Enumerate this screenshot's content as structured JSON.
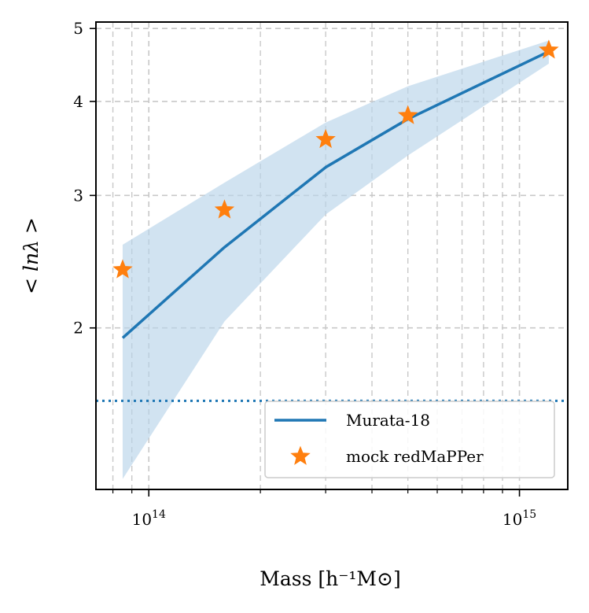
{
  "chart_data": {
    "type": "line",
    "x_scale": "log",
    "y_scale": "log",
    "xlabel": "Mass [h⁻¹M⊙]",
    "ylabel": "< lnλ >",
    "xlim": [
      72000000000000,
      1350000000000000
    ],
    "ylim": [
      1.22,
      5.1
    ],
    "grid": true,
    "x_ticks": [
      {
        "value": 100000000000000,
        "label": "10",
        "exponent": "14"
      },
      {
        "value": 1000000000000000,
        "label": "10",
        "exponent": "15"
      }
    ],
    "y_ticks": [
      {
        "value": 2,
        "label": "2"
      },
      {
        "value": 3,
        "label": "3"
      },
      {
        "value": 4,
        "label": "4"
      },
      {
        "value": 5,
        "label": "5"
      }
    ],
    "threshold_line": {
      "y": 1.6,
      "style": "dotted",
      "color": "#1f77b4"
    },
    "series": [
      {
        "name": "Murata-18",
        "kind": "line",
        "color": "#1f77b4",
        "x": [
          85000000000000,
          160000000000000,
          300000000000000,
          500000000000000,
          1200000000000000
        ],
        "y": [
          1.94,
          2.56,
          3.27,
          3.79,
          4.66
        ],
        "band_upper": [
          2.58,
          3.12,
          3.75,
          4.19,
          4.82
        ],
        "band_lower": [
          1.26,
          2.04,
          2.83,
          3.39,
          4.49
        ],
        "band_color": "#b9d4ea"
      },
      {
        "name": "mock redMaPPer",
        "kind": "scatter",
        "marker": "star",
        "color": "#ff7f0e",
        "x": [
          85000000000000,
          160000000000000,
          300000000000000,
          500000000000000,
          1200000000000000
        ],
        "y": [
          2.39,
          2.87,
          3.56,
          3.83,
          4.68
        ]
      }
    ],
    "legend": {
      "position": "lower-right",
      "entries": [
        "Murata-18",
        "mock redMaPPer"
      ]
    }
  }
}
